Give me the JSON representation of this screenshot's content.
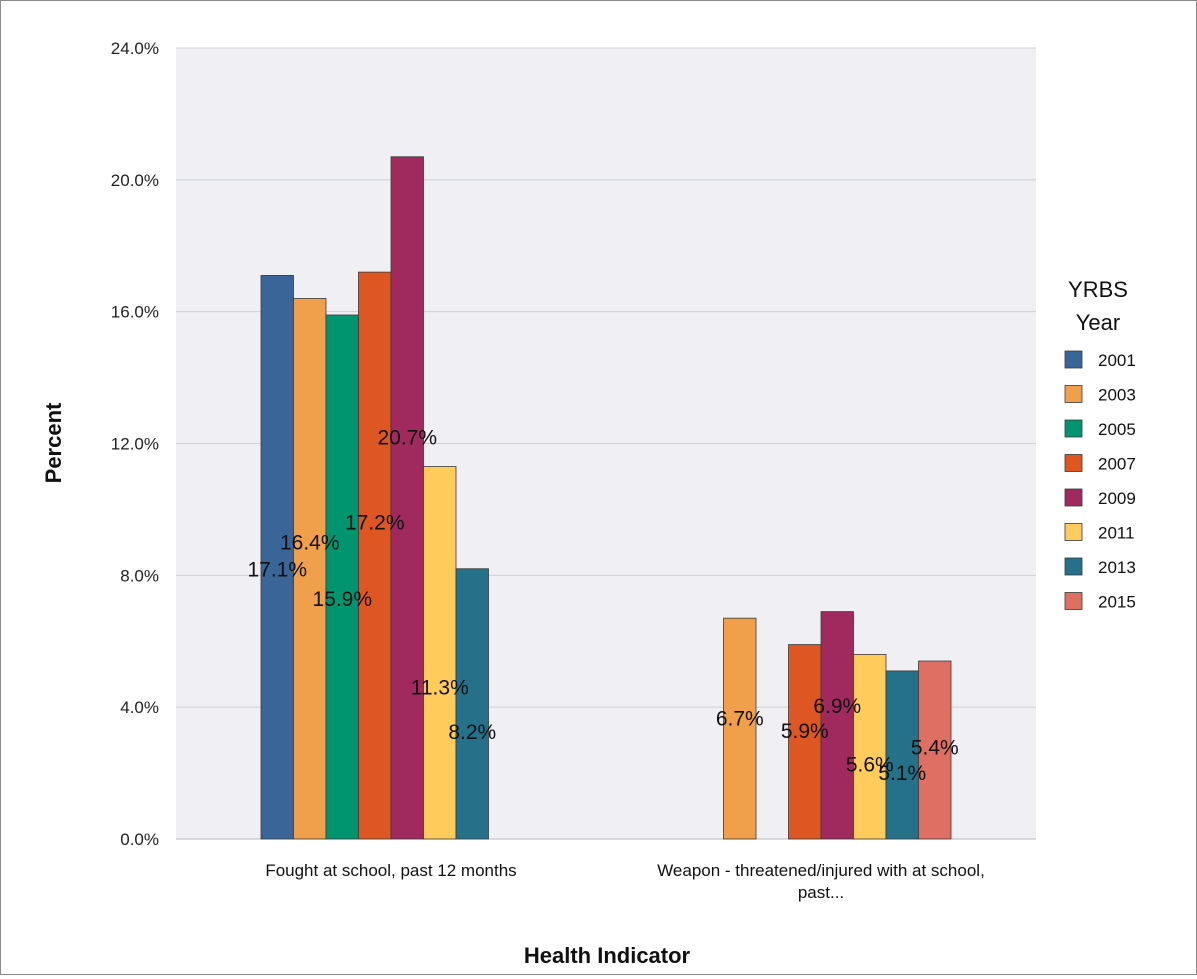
{
  "chart_data": {
    "type": "bar",
    "title": "",
    "xlabel": "Health Indicator",
    "ylabel": "Percent",
    "ylim": [
      0,
      24
    ],
    "yticks": [
      "0.0%",
      "4.0%",
      "8.0%",
      "12.0%",
      "16.0%",
      "20.0%",
      "24.0%"
    ],
    "grid": true,
    "legend_position": "right",
    "legend_title": [
      "YRBS",
      "Year"
    ],
    "categories": [
      [
        "Fought at school, past 12 months"
      ],
      [
        "Weapon - threatened/injured with at school,",
        "past..."
      ]
    ],
    "series": [
      {
        "name": "2001",
        "color": "#3a6598",
        "values": [
          17.1,
          null
        ],
        "labels": [
          "17.1%",
          ""
        ]
      },
      {
        "name": "2003",
        "color": "#f0a04b",
        "values": [
          16.4,
          6.7
        ],
        "labels": [
          "16.4%",
          "6.7%"
        ]
      },
      {
        "name": "2005",
        "color": "#00956f",
        "values": [
          15.9,
          null
        ],
        "labels": [
          "15.9%",
          ""
        ]
      },
      {
        "name": "2007",
        "color": "#de5722",
        "values": [
          17.2,
          5.9
        ],
        "labels": [
          "17.2%",
          "5.9%"
        ]
      },
      {
        "name": "2009",
        "color": "#a02a5e",
        "values": [
          20.7,
          6.9
        ],
        "labels": [
          "20.7%",
          "6.9%"
        ]
      },
      {
        "name": "2011",
        "color": "#ffcc5c",
        "values": [
          11.3,
          5.6
        ],
        "labels": [
          "11.3%",
          "5.6%"
        ]
      },
      {
        "name": "2013",
        "color": "#25718a",
        "values": [
          8.2,
          5.1
        ],
        "labels": [
          "8.2%",
          "5.1%"
        ]
      },
      {
        "name": "2015",
        "color": "#df6f62",
        "values": [
          null,
          5.4
        ],
        "labels": [
          "",
          "5.4%"
        ]
      }
    ]
  }
}
